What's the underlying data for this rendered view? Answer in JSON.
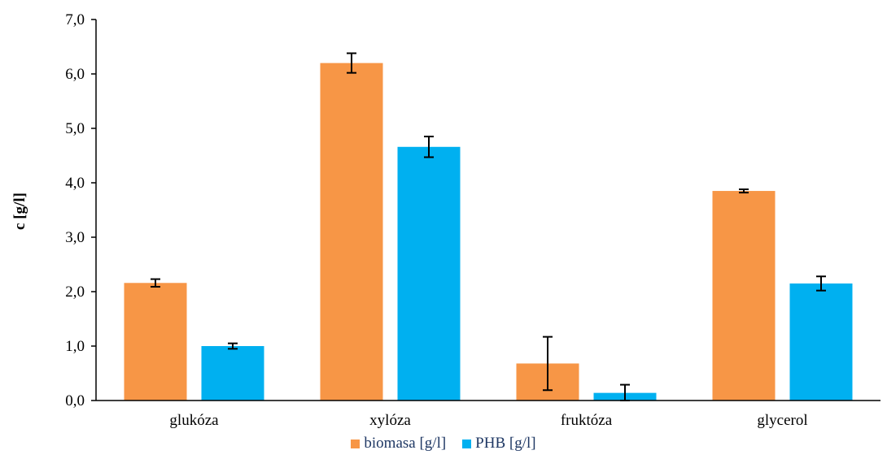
{
  "chart_data": {
    "type": "bar",
    "title": "",
    "xlabel": "",
    "ylabel": "c [g/l]",
    "ylim": [
      0,
      7
    ],
    "yticks": [
      "0,0",
      "1,0",
      "2,0",
      "3,0",
      "4,0",
      "5,0",
      "6,0",
      "7,0"
    ],
    "categories": [
      "glukóza",
      "xylóza",
      "fruktóza",
      "glycerol"
    ],
    "series": [
      {
        "name": "biomasa [g/l]",
        "color": "#f79646",
        "values": [
          2.16,
          6.2,
          0.68,
          3.85
        ],
        "errors": [
          0.07,
          0.18,
          0.49,
          0.03
        ]
      },
      {
        "name": "PHB [g/l]",
        "color": "#00b0f0",
        "values": [
          1.0,
          4.66,
          0.14,
          2.15
        ],
        "errors": [
          0.05,
          0.19,
          0.15,
          0.13
        ]
      }
    ],
    "grid": false,
    "legend_position": "bottom"
  }
}
